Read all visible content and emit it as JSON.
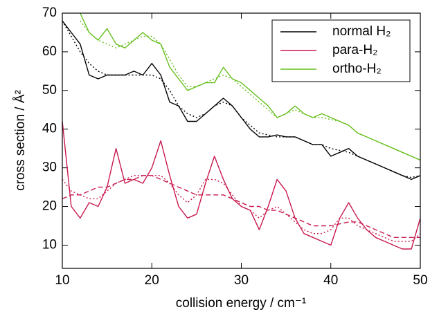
{
  "chart_data": {
    "type": "line",
    "xlabel": "collision energy / cm⁻¹",
    "ylabel": "cross section / Å²",
    "x": [
      10,
      11,
      12,
      13,
      14,
      15,
      16,
      17,
      18,
      19,
      20,
      21,
      22,
      23,
      24,
      25,
      26,
      27,
      28,
      29,
      30,
      31,
      32,
      33,
      34,
      35,
      36,
      37,
      38,
      39,
      40,
      41,
      42,
      43,
      44,
      45,
      46,
      47,
      48,
      49,
      50
    ],
    "xlim": [
      10,
      50
    ],
    "xticks": [
      10,
      20,
      30,
      40,
      50
    ],
    "ylim": [
      4,
      70
    ],
    "yticks": [
      10,
      20,
      30,
      40,
      50,
      60,
      70
    ],
    "legend": "upper right",
    "series": [
      {
        "name": "normal H₂",
        "color": "#000000",
        "dash": "solid",
        "values": [
          68,
          65,
          62,
          54,
          53,
          54,
          54,
          54,
          55,
          54,
          57,
          54,
          47,
          46,
          42,
          42,
          44,
          46,
          48,
          46,
          43,
          40,
          38,
          38,
          38.5,
          38,
          38,
          37,
          36,
          36,
          33,
          34,
          35,
          33,
          32,
          31,
          30,
          29,
          28,
          27,
          28
        ]
      },
      {
        "color": "#000000",
        "dash": "dotted",
        "values": [
          68,
          64,
          60,
          57,
          55,
          54,
          54,
          54,
          54,
          54,
          54,
          53,
          50,
          46,
          44,
          43,
          44,
          46,
          47,
          46,
          43,
          41,
          39,
          38.5,
          38,
          38,
          38,
          37,
          36,
          36,
          35,
          34.5,
          34,
          33,
          32,
          31,
          30,
          29,
          28,
          27.5,
          28
        ]
      },
      {
        "name": "para-H₂",
        "color": "#c8184c",
        "dash": "solid",
        "values": [
          42,
          20,
          17,
          21,
          20,
          25,
          35,
          26,
          27,
          26,
          30,
          37,
          28,
          20,
          17,
          18,
          26,
          33,
          27,
          22,
          20,
          19,
          14,
          20,
          27,
          24,
          17,
          13,
          12,
          11,
          10,
          17,
          21,
          17,
          14,
          12,
          11,
          10,
          9,
          9,
          17
        ]
      },
      {
        "color": "#c8184c",
        "dash": "dotted",
        "values": [
          27,
          24,
          23,
          22,
          22,
          24,
          26,
          27,
          28,
          28,
          28,
          28,
          26,
          23,
          21,
          23,
          27,
          27,
          26,
          23,
          20,
          19,
          17,
          19,
          20,
          18,
          16,
          14,
          13,
          13,
          14,
          17,
          17,
          15,
          14,
          13,
          12,
          11,
          11,
          11,
          13
        ]
      },
      {
        "color": "#c8184c",
        "dash": "dashed",
        "values": [
          22,
          23,
          23,
          24,
          25,
          25,
          26,
          27,
          27,
          28,
          28,
          27,
          26,
          25,
          24,
          23,
          23,
          23,
          23,
          22,
          21,
          20,
          20,
          19,
          19,
          18,
          17,
          16,
          15,
          15,
          15,
          15.5,
          16,
          16,
          15,
          14,
          13,
          12,
          12,
          12,
          12
        ]
      },
      {
        "name": "ortho-H₂",
        "color": "#66bf1c",
        "dash": "solid",
        "values": [
          null,
          null,
          70,
          65,
          63,
          66,
          62,
          61,
          63,
          65,
          63,
          62,
          56,
          53,
          50,
          51,
          52,
          52,
          56,
          53,
          52,
          50,
          48,
          46,
          43,
          44,
          46,
          44,
          43,
          44,
          43,
          42,
          41,
          39,
          38,
          37,
          36,
          35,
          34,
          33,
          32
        ]
      },
      {
        "color": "#66bf1c",
        "dash": "dotted",
        "values": [
          null,
          null,
          68,
          65,
          63,
          62,
          61,
          62,
          63,
          64,
          64,
          62,
          58,
          54,
          51,
          51,
          52,
          53,
          54,
          53,
          51,
          49,
          47,
          45,
          43,
          44,
          45,
          44,
          43,
          43,
          42.5,
          42,
          41,
          39,
          38,
          37,
          36,
          35,
          34,
          33,
          32
        ]
      }
    ]
  }
}
